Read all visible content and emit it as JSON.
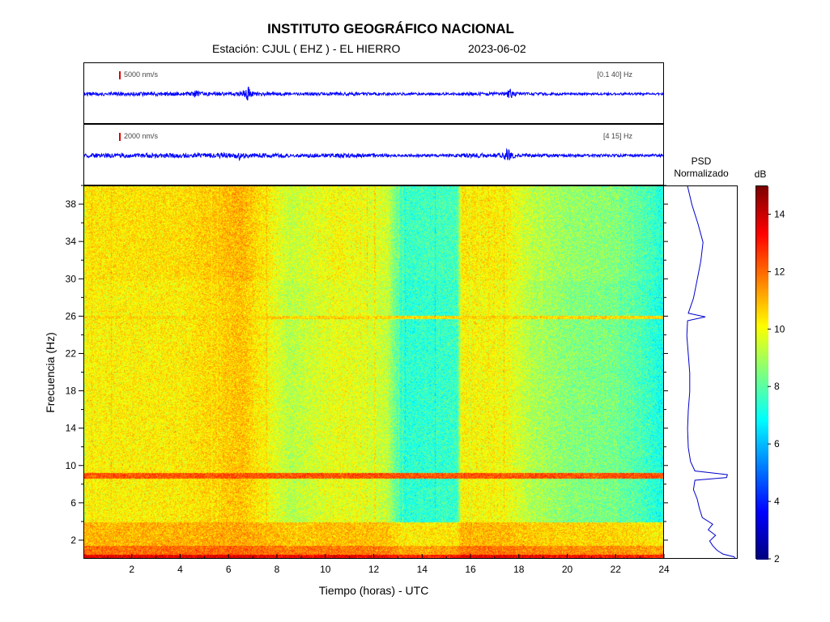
{
  "header": {
    "title": "INSTITUTO GEOGRÁFICO NACIONAL",
    "station": "Estación:  CJUL ( EHZ ) - EL HIERRO",
    "date": "2023-06-02"
  },
  "traces": [
    {
      "scale_label": "5000 nm/s",
      "band_label": "[0.1 40] Hz",
      "color": "#0000ff",
      "scale_color": "#e00000"
    },
    {
      "scale_label": "2000 nm/s",
      "band_label": "[4 15] Hz",
      "color": "#0000ff",
      "scale_color": "#e00000"
    }
  ],
  "psd_panel": {
    "title_line1": "PSD",
    "title_line2": "Normalizado",
    "line_color": "#0000cc"
  },
  "colorbar": {
    "unit": "dB",
    "min": 2,
    "max": 15,
    "ticks": [
      2,
      4,
      6,
      8,
      10,
      12,
      14
    ],
    "colormap": "jet"
  },
  "chart_data": {
    "type": "heatmap",
    "title": "INSTITUTO GEOGRÁFICO NACIONAL",
    "xlabel": "Tiempo (horas) - UTC",
    "ylabel": "Frecuencia  (Hz)",
    "xlim": [
      0,
      24
    ],
    "ylim": [
      0,
      40
    ],
    "xticks": [
      2,
      4,
      6,
      8,
      10,
      12,
      14,
      16,
      18,
      20,
      22,
      24
    ],
    "yticks": [
      2,
      6,
      10,
      14,
      18,
      22,
      26,
      30,
      34,
      38
    ],
    "background_db": 9.6,
    "time_intensity_db": [
      {
        "t": 0,
        "db": 0.6
      },
      {
        "t": 4,
        "db": 0.7
      },
      {
        "t": 6.5,
        "db": 1.3
      },
      {
        "t": 7.5,
        "db": 0.5
      },
      {
        "t": 8.5,
        "db": -0.4
      },
      {
        "t": 10.5,
        "db": 0.3
      },
      {
        "t": 12.5,
        "db": -0.2
      },
      {
        "t": 13.1,
        "db": -2.2
      },
      {
        "t": 15.4,
        "db": -2.0
      },
      {
        "t": 15.6,
        "db": 0.6
      },
      {
        "t": 17.5,
        "db": 0.4
      },
      {
        "t": 18.5,
        "db": -0.5
      },
      {
        "t": 20,
        "db": -1.0
      },
      {
        "t": 22,
        "db": -1.2
      },
      {
        "t": 23.3,
        "db": -2.0
      },
      {
        "t": 24,
        "db": -2.6
      }
    ],
    "frequency_bands": [
      {
        "f_min": 0,
        "f_max": 0.6,
        "db": 13.5
      },
      {
        "f_min": 0.6,
        "f_max": 1.5,
        "db": 11.8
      },
      {
        "f_min": 1.5,
        "f_max": 4.0,
        "db": 10.9
      },
      {
        "f_min": 8.7,
        "f_max": 9.3,
        "db": 12.3
      },
      {
        "f_min": 25.8,
        "f_max": 26.2,
        "db": 10.6
      }
    ],
    "psd_normalized": [
      {
        "f": 0.1,
        "v": 0.97
      },
      {
        "f": 0.3,
        "v": 0.95
      },
      {
        "f": 0.6,
        "v": 0.8
      },
      {
        "f": 1.0,
        "v": 0.72
      },
      {
        "f": 1.5,
        "v": 0.66
      },
      {
        "f": 2.0,
        "v": 0.62
      },
      {
        "f": 2.6,
        "v": 0.7
      },
      {
        "f": 3.2,
        "v": 0.6
      },
      {
        "f": 3.8,
        "v": 0.66
      },
      {
        "f": 4.5,
        "v": 0.52
      },
      {
        "f": 5.5,
        "v": 0.48
      },
      {
        "f": 6.5,
        "v": 0.45
      },
      {
        "f": 7.5,
        "v": 0.4
      },
      {
        "f": 8.5,
        "v": 0.42
      },
      {
        "f": 8.8,
        "v": 0.85
      },
      {
        "f": 9.1,
        "v": 0.86
      },
      {
        "f": 9.5,
        "v": 0.42
      },
      {
        "f": 10.5,
        "v": 0.36
      },
      {
        "f": 12,
        "v": 0.33
      },
      {
        "f": 14,
        "v": 0.32
      },
      {
        "f": 16,
        "v": 0.33
      },
      {
        "f": 18,
        "v": 0.35
      },
      {
        "f": 20,
        "v": 0.35
      },
      {
        "f": 22,
        "v": 0.33
      },
      {
        "f": 24,
        "v": 0.31
      },
      {
        "f": 25.6,
        "v": 0.32
      },
      {
        "f": 26.0,
        "v": 0.56
      },
      {
        "f": 26.4,
        "v": 0.33
      },
      {
        "f": 28,
        "v": 0.4
      },
      {
        "f": 30,
        "v": 0.45
      },
      {
        "f": 32,
        "v": 0.5
      },
      {
        "f": 34,
        "v": 0.53
      },
      {
        "f": 36,
        "v": 0.46
      },
      {
        "f": 38,
        "v": 0.38
      },
      {
        "f": 40,
        "v": 0.32
      }
    ]
  }
}
